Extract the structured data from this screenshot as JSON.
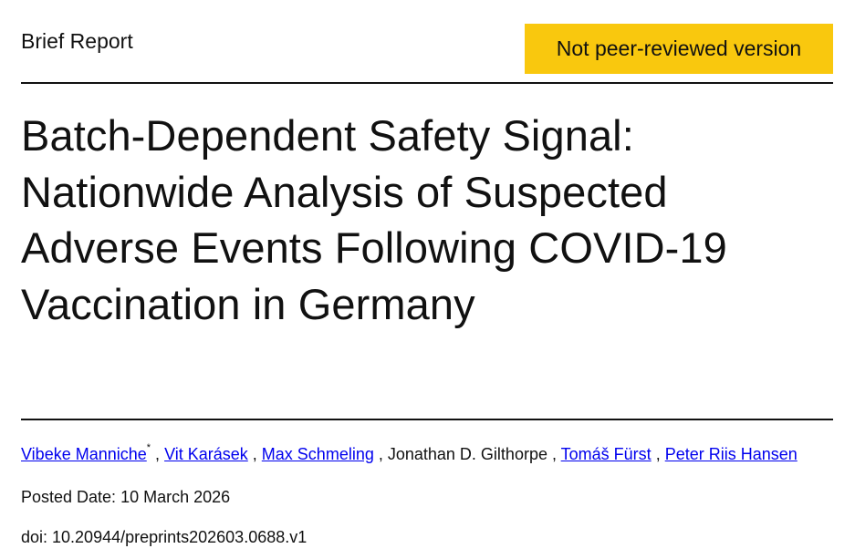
{
  "header": {
    "article_type": "Brief Report",
    "badge": "Not peer-reviewed version"
  },
  "title_lines": [
    "Batch-Dependent Safety Signal:",
    "Nationwide Analysis of Suspected",
    "Adverse Events Following COVID-19",
    "Vaccination in Germany"
  ],
  "authors": [
    {
      "name": "Vibeke Manniche",
      "linked": true,
      "mark": "*"
    },
    {
      "name": "Vit Karásek",
      "linked": true
    },
    {
      "name": "Max Schmeling",
      "linked": true
    },
    {
      "name": "Jonathan D. Gilthorpe",
      "linked": false
    },
    {
      "name": "Tomáš Fürst",
      "linked": true
    },
    {
      "name": "Peter Riis Hansen",
      "linked": true
    }
  ],
  "meta": {
    "posted_date": "Posted Date: 10 March 2026",
    "doi": "doi: 10.20944/preprints202603.0688.v1"
  }
}
